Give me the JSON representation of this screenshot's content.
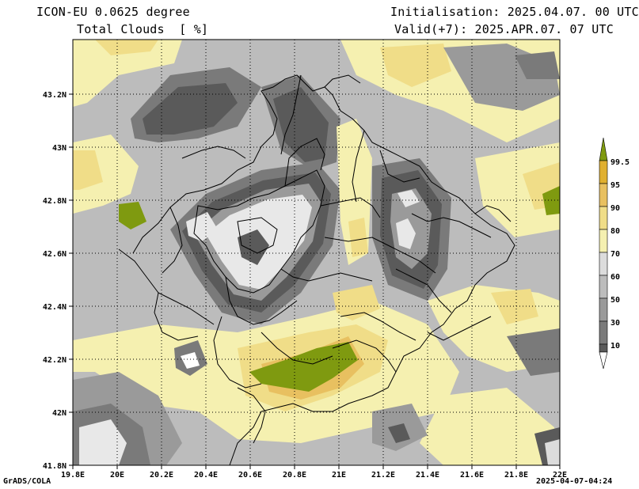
{
  "header": {
    "model": "ICON-EU 0.0625 degree",
    "variable": "Total Clouds  [ %]",
    "init": "Initialisation: 2025.04.07. 00 UTC",
    "valid": "Valid(+7): 2025.APR.07. 07 UTC"
  },
  "footer": {
    "credit": "GrADS/COLA",
    "stamp": "2025-04-07-04:24"
  },
  "axes": {
    "x_ticks": [
      "19.8E",
      "20E",
      "20.2E",
      "20.4E",
      "20.6E",
      "20.8E",
      "21E",
      "21.2E",
      "21.4E",
      "21.6E",
      "21.8E",
      "22E"
    ],
    "y_ticks": [
      "43.2N",
      "43N",
      "42.8N",
      "42.6N",
      "42.4N",
      "42.2N",
      "42N",
      "41.8N"
    ]
  },
  "legend": {
    "labels": [
      "10",
      "30",
      "50",
      "60",
      "70",
      "80",
      "90",
      "95",
      "99.5"
    ],
    "colors": [
      "#ffffff",
      "#5a5a5a",
      "#7a7a7a",
      "#9a9a9a",
      "#bcbcbc",
      "#dcdcdc",
      "#f5f0b0",
      "#f0dd88",
      "#e8c060",
      "#e0b030",
      "#7f9a10"
    ]
  },
  "colors": {
    "clear": "#e8e8e8",
    "dark": "#5a5a5a",
    "mid_dark": "#7a7a7a",
    "mid": "#9a9a9a",
    "light": "#bcbcbc",
    "very_light": "#dcdcdc",
    "pale_yellow": "#f5f0b0",
    "yellow": "#f0dd88",
    "orange": "#e8c060",
    "dark_orange": "#e0b030",
    "olive": "#7f9a10"
  }
}
